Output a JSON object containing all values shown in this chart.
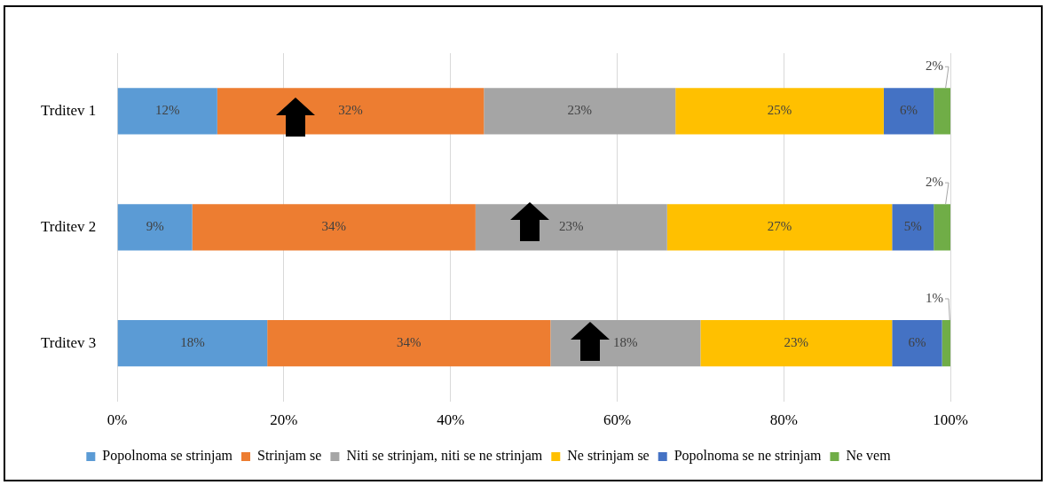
{
  "chart_data": {
    "type": "bar",
    "orientation": "horizontal",
    "stacked": true,
    "categories": [
      "Trditev 1",
      "Trditev 2",
      "Trditev 3"
    ],
    "series": [
      {
        "name": "Popolnoma se strinjam",
        "color": "#5b9bd5",
        "values": [
          12,
          9,
          18
        ],
        "value_labels": [
          "12%",
          "9%",
          "18%"
        ]
      },
      {
        "name": "Strinjam se",
        "color": "#ed7d31",
        "values": [
          32,
          34,
          34
        ],
        "value_labels": [
          "32%",
          "34%",
          "34%"
        ]
      },
      {
        "name": "Niti se strinjam, niti se ne strinjam",
        "color": "#a5a5a5",
        "values": [
          23,
          23,
          18
        ],
        "value_labels": [
          "23%",
          "23%",
          "18%"
        ]
      },
      {
        "name": "Ne strinjam se",
        "color": "#ffc000",
        "values": [
          25,
          27,
          23
        ],
        "value_labels": [
          "25%",
          "27%",
          "23%"
        ]
      },
      {
        "name": "Popolnoma se ne strinjam",
        "color": "#4472c4",
        "values": [
          6,
          5,
          6
        ],
        "value_labels": [
          "6%",
          "5%",
          "6%"
        ]
      },
      {
        "name": "Ne vem",
        "color": "#70ad47",
        "values": [
          2,
          2,
          1
        ],
        "value_labels": [
          "2%",
          "2%",
          "1%"
        ]
      }
    ],
    "xlim": [
      0,
      100
    ],
    "xticks": [
      {
        "value": 0,
        "label": "0%"
      },
      {
        "value": 20,
        "label": "20%"
      },
      {
        "value": 40,
        "label": "40%"
      },
      {
        "value": 60,
        "label": "60%"
      },
      {
        "value": 80,
        "label": "80%"
      },
      {
        "value": 100,
        "label": "100%"
      }
    ],
    "grid": "x",
    "legend": "bottom"
  }
}
